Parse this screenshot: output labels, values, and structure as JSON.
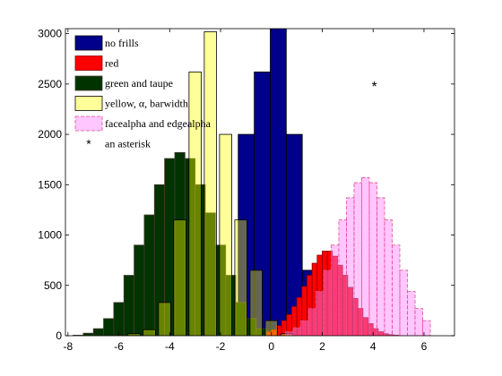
{
  "chart_data": {
    "type": "bar",
    "title": "",
    "xlabel": "",
    "ylabel": "",
    "xlim": [
      -8.1,
      7.2
    ],
    "ylim": [
      0,
      3050
    ],
    "xticks": [
      -8,
      -6,
      -4,
      -2,
      0,
      2,
      4,
      6
    ],
    "xtick_labels": [
      "-8",
      "-6",
      "-4",
      "-2",
      "0",
      "2",
      "4",
      "6"
    ],
    "yticks": [
      0,
      500,
      1000,
      1500,
      2000,
      2500,
      3000
    ],
    "ytick_labels": [
      "0",
      "500",
      "1000",
      "1500",
      "2000",
      "2500",
      "3000"
    ],
    "grid": false,
    "legend_position": "top-left",
    "series": [
      {
        "name": "no frills",
        "color": "#00008c",
        "edge": "#000000",
        "fill_opacity": 1,
        "bar_width": 0.63,
        "x": [
          -1.62,
          -0.99,
          -0.36,
          0.27,
          0.9,
          1.53
        ],
        "values": [
          320,
          2000,
          2620,
          3050,
          2000,
          650
        ]
      },
      {
        "name": "red",
        "color": "#ff0000",
        "edge": "#8b0000",
        "fill_opacity": 1,
        "bar_width": 0.2,
        "x": [
          -0.9,
          -0.7,
          -0.5,
          -0.3,
          -0.1,
          0.1,
          0.3,
          0.5,
          0.7,
          0.9,
          1.1,
          1.3,
          1.5,
          1.7,
          1.9,
          2.1,
          2.3,
          2.5,
          2.7,
          2.9,
          3.1,
          3.3,
          3.5,
          3.7,
          3.9,
          4.1,
          4.3,
          4.5,
          4.7,
          4.9
        ],
        "values": [
          2,
          5,
          10,
          20,
          40,
          60,
          100,
          150,
          210,
          290,
          380,
          490,
          600,
          720,
          800,
          840,
          840,
          790,
          700,
          600,
          480,
          370,
          270,
          180,
          120,
          70,
          40,
          20,
          10,
          5
        ]
      },
      {
        "name": "green and taupe",
        "color": "#003300",
        "edge": "#483c32",
        "fill_opacity": 1,
        "bar_width": 0.4,
        "x": [
          -7.6,
          -7.2,
          -6.8,
          -6.4,
          -6.0,
          -5.6,
          -5.2,
          -4.8,
          -4.4,
          -4.0,
          -3.6,
          -3.2,
          -2.8,
          -2.4,
          -2.0,
          -1.6,
          -1.2,
          -0.8,
          -0.4
        ],
        "values": [
          5,
          25,
          70,
          170,
          330,
          600,
          900,
          1200,
          1500,
          1760,
          1820,
          1760,
          1500,
          1220,
          900,
          600,
          330,
          170,
          70
        ]
      },
      {
        "name": "yellow, α, barwidth",
        "color": "#ffff00",
        "edge": "#000000",
        "fill_opacity": 0.4,
        "bar_width": 0.48,
        "x": [
          -5.4,
          -4.8,
          -4.2,
          -3.6,
          -3.0,
          -2.4,
          -1.8,
          -1.2,
          -0.6,
          0.0,
          0.6
        ],
        "values": [
          20,
          60,
          330,
          1150,
          2620,
          3020,
          2000,
          1150,
          650,
          150,
          20
        ]
      },
      {
        "name": "facealpha and edgealpha",
        "color": "#ff80ff",
        "edge": "#e0508c",
        "fill_opacity": 0.45,
        "bar_width": 0.3,
        "x": [
          0.7,
          1.0,
          1.3,
          1.6,
          1.9,
          2.2,
          2.5,
          2.8,
          3.1,
          3.4,
          3.7,
          4.0,
          4.3,
          4.6,
          4.9,
          5.2,
          5.5,
          5.8,
          6.1
        ],
        "values": [
          40,
          80,
          150,
          270,
          440,
          650,
          900,
          1150,
          1370,
          1520,
          1570,
          1520,
          1370,
          1150,
          900,
          650,
          440,
          270,
          150
        ]
      }
    ],
    "markers": [
      {
        "name": "an asterisk",
        "symbol": "*",
        "x": 4.05,
        "y": 2500
      }
    ]
  }
}
